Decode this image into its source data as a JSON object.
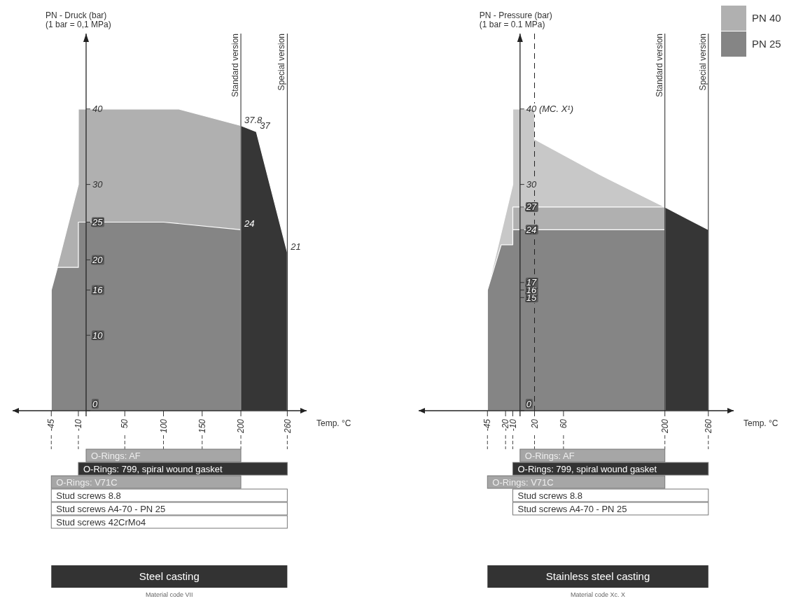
{
  "chart_data": [
    {
      "type": "area",
      "xlabel": "Temp. °C",
      "ylabel": "PN - Druck (bar)\n(1 bar = 0,1 MPa)",
      "xlim": [
        -95,
        285
      ],
      "ylim": [
        0,
        50
      ],
      "xticks": [
        -45,
        -10,
        50,
        100,
        150,
        200,
        260
      ],
      "yticks": [
        0,
        10,
        16,
        20,
        25,
        30,
        40
      ],
      "series": [
        {
          "color": "#b0b0b0",
          "x": [
            -45,
            -10,
            -10,
            120,
            200
          ],
          "values": [
            16,
            30,
            40,
            40,
            37.8
          ]
        },
        {
          "color": "#858585",
          "x": [
            -45,
            -37,
            -10,
            -10,
            100,
            200
          ],
          "values": [
            16,
            19,
            19,
            25,
            25,
            24
          ]
        },
        {
          "color": "#363636",
          "x": [
            200,
            220,
            260
          ],
          "values": [
            37.8,
            37,
            21
          ]
        }
      ],
      "ref_lines": [
        {
          "axis": "x",
          "value": 200,
          "label": "Standard version"
        },
        {
          "axis": "x",
          "value": 260,
          "label": "Special version"
        }
      ],
      "annotations": [
        {
          "text": "37.8",
          "x": 200,
          "y": 37.8
        },
        {
          "text": "37",
          "x": 220,
          "y": 37
        },
        {
          "text": "24",
          "x": 200,
          "y": 24
        },
        {
          "text": "21",
          "x": 260,
          "y": 21
        }
      ]
    },
    {
      "type": "bar",
      "orientation": "horizontal",
      "xlim": [
        -45,
        260
      ],
      "xticks": [
        -45,
        -10,
        50,
        100,
        150,
        200,
        260
      ],
      "tick_labels": false,
      "title": "Steel casting",
      "subtitle": "Material code VII",
      "categories": [
        "O-Rings: AF",
        "O-Rings: 799, spiral wound gasket",
        "O-Rings: V71C",
        "Stud screws 8.8",
        "Stud screws A4-70 - PN 25",
        "Stud screws 42CrMo4"
      ],
      "base": [
        0,
        -10,
        -45,
        -45,
        -45,
        -45
      ],
      "values": [
        200,
        270,
        245,
        305,
        305,
        305
      ],
      "colors": [
        "#a6a6a6",
        "#333333",
        "#a6a6a6",
        "#ffffff",
        "#ffffff",
        "#ffffff"
      ]
    },
    {
      "type": "area",
      "xlabel": "Temp. °C",
      "ylabel": "PN - Pressure (bar)\n(1 bar = 0.1 MPa)",
      "xlim": [
        -140,
        295
      ],
      "ylim": [
        0,
        50
      ],
      "xticks": [
        -45,
        -20,
        -10,
        20,
        60,
        200,
        260
      ],
      "yticks": [
        0,
        15,
        16,
        17,
        24,
        27,
        30,
        {
          "value": 40,
          "label": "40 (MC. X¹)"
        }
      ],
      "legend": "top right",
      "series": [
        {
          "color": "#c8c8c8",
          "x": [
            -45,
            -10,
            -10,
            20,
            20,
            110,
            200
          ],
          "values": [
            16,
            30,
            40,
            40,
            36,
            31.3,
            27
          ]
        },
        {
          "name": "PN 40",
          "color": "#b0b0b0",
          "x": [
            -10,
            200
          ],
          "values": [
            27,
            27
          ]
        },
        {
          "name": "PN 25",
          "color": "#858585",
          "x": [
            -45,
            -26,
            -10,
            -10,
            200
          ],
          "values": [
            16,
            22,
            22,
            24,
            24
          ]
        },
        {
          "color": "#363636",
          "x": [
            200,
            230,
            260
          ],
          "values": [
            27,
            25.5,
            24
          ]
        }
      ],
      "ref_lines": [
        {
          "axis": "x",
          "value": 20,
          "line_style": "dashed"
        },
        {
          "axis": "x",
          "value": 200,
          "label": "Standard version"
        },
        {
          "axis": "x",
          "value": 260,
          "label": "Special version"
        }
      ]
    },
    {
      "type": "bar",
      "orientation": "horizontal",
      "xlim": [
        -45,
        260
      ],
      "xticks": [
        -45,
        -20,
        -10,
        20,
        60,
        200,
        260
      ],
      "tick_labels": false,
      "title": "Stainless steel casting",
      "subtitle": "Material code Xc. X",
      "categories": [
        "O-Rings: AF",
        "O-Rings: 799, spiral wound gasket",
        "O-Rings: V71C",
        "Stud screws 8.8",
        "Stud screws A4-70 - PN 25"
      ],
      "base": [
        0,
        -10,
        -45,
        -10,
        -10
      ],
      "values": [
        200,
        270,
        245,
        270,
        270
      ],
      "colors": [
        "#a6a6a6",
        "#333333",
        "#a6a6a6",
        "#ffffff",
        "#ffffff"
      ]
    }
  ]
}
